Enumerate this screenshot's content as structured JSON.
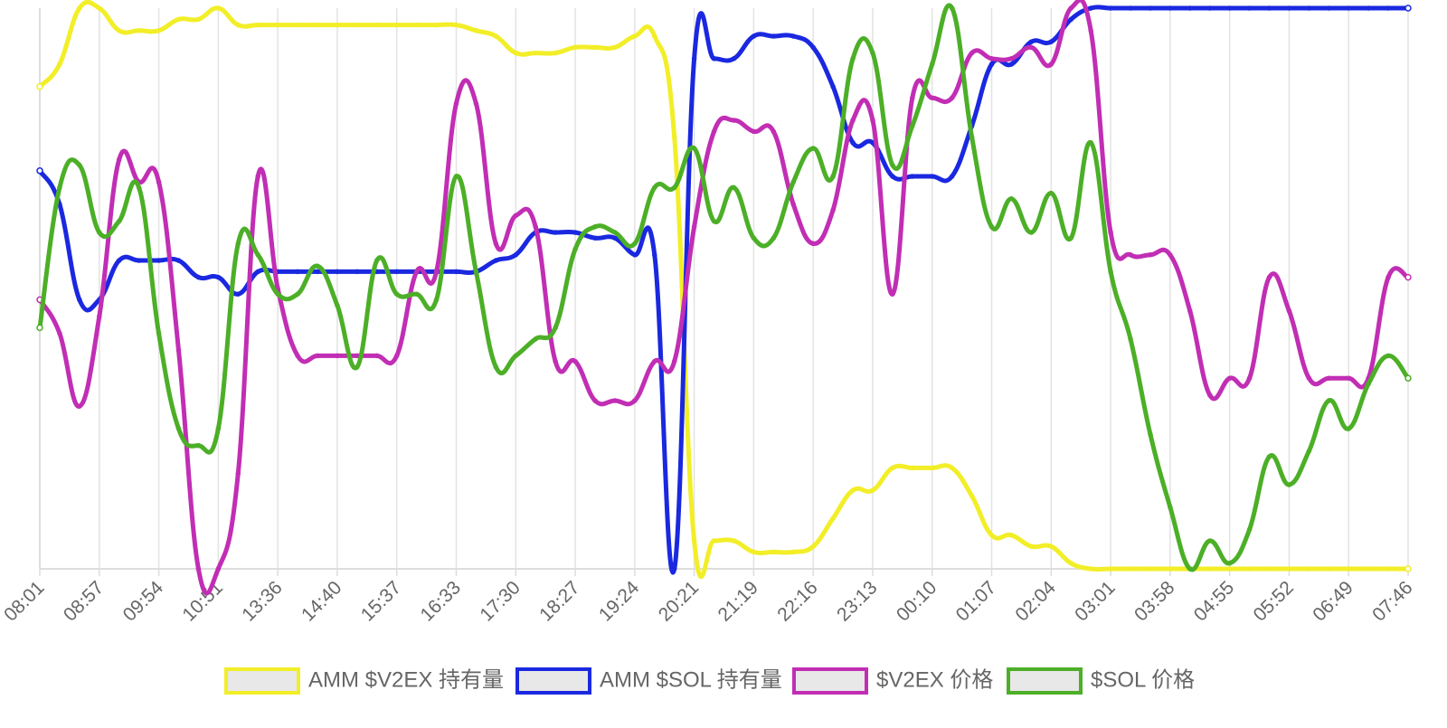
{
  "chart_data": {
    "type": "line",
    "categories": [
      "08:01",
      null,
      null,
      "08:57",
      null,
      null,
      "09:54",
      null,
      null,
      "10:51",
      null,
      null,
      "13:36",
      null,
      null,
      "14:40",
      null,
      null,
      "15:37",
      null,
      null,
      "16:33",
      null,
      null,
      "17:30",
      null,
      null,
      "18:27",
      null,
      null,
      "19:24",
      null,
      null,
      "20:21",
      null,
      null,
      "21:19",
      null,
      null,
      "22:16",
      null,
      null,
      "23:13",
      null,
      null,
      "00:10",
      null,
      null,
      "01:07",
      null,
      null,
      "02:04",
      null,
      null,
      "03:01",
      null,
      null,
      "03:58",
      null,
      null,
      "04:55",
      null,
      null,
      "05:52",
      null,
      null,
      "06:49",
      null,
      null,
      "07:46"
    ],
    "ylim": [
      0,
      100
    ],
    "grid": true,
    "legend": "bottom",
    "series": [
      {
        "name": "AMM $V2EX 持有量",
        "color": "#f2ee27",
        "values": [
          86,
          90,
          100,
          100,
          96,
          96,
          96,
          98,
          98,
          100,
          97,
          97,
          97,
          97,
          97,
          97,
          97,
          97,
          97,
          97,
          97,
          97,
          96,
          95,
          92,
          92,
          92,
          93,
          93,
          93,
          95,
          95,
          77,
          5,
          5,
          5,
          3,
          3,
          3,
          4,
          9,
          14,
          14,
          18,
          18,
          18,
          18,
          13,
          6,
          6,
          4,
          4,
          1,
          0,
          0,
          0,
          0,
          0,
          0,
          0,
          0,
          0,
          0,
          0,
          0,
          0,
          0,
          0,
          0,
          0
        ]
      },
      {
        "name": "AMM $SOL 持有量",
        "color": "#1a28e0",
        "values": [
          71,
          65,
          48,
          48,
          55,
          55,
          55,
          55,
          52,
          52,
          49,
          53,
          53,
          53,
          53,
          53,
          53,
          53,
          53,
          53,
          53,
          53,
          53,
          55,
          56,
          60,
          60,
          60,
          59,
          59,
          56,
          56,
          0,
          91,
          91,
          91,
          95,
          95,
          95,
          93,
          86,
          76,
          76,
          70,
          70,
          70,
          70,
          79,
          90,
          90,
          94,
          94,
          98,
          100,
          100,
          100,
          100,
          100,
          100,
          100,
          100,
          100,
          100,
          100,
          100,
          100,
          100,
          100,
          100,
          100
        ]
      },
      {
        "name": "$V2EX 价格",
        "color": "#c12eb4",
        "values": [
          48,
          42,
          29,
          45,
          73,
          69,
          69,
          39,
          0,
          0,
          17,
          70,
          50,
          38,
          38,
          38,
          38,
          38,
          38,
          53,
          53,
          83,
          83,
          58,
          63,
          61,
          37,
          37,
          30,
          30,
          30,
          37,
          37,
          61,
          78,
          80,
          78,
          78,
          65,
          58,
          64,
          80,
          80,
          49,
          84,
          84,
          84,
          92,
          91,
          91,
          93,
          90,
          100,
          96,
          60,
          56,
          56,
          56,
          46,
          31,
          34,
          34,
          52,
          46,
          34,
          34,
          34,
          34,
          52,
          52
        ]
      },
      {
        "name": "$SOL 价格",
        "color": "#4caf27",
        "values": [
          43,
          68,
          72,
          60,
          62,
          68,
          42,
          25,
          22,
          25,
          58,
          56,
          49,
          49,
          54,
          47,
          36,
          55,
          49,
          49,
          48,
          70,
          53,
          36,
          38,
          41,
          43,
          57,
          61,
          60,
          58,
          68,
          68,
          75,
          62,
          68,
          59,
          59,
          69,
          75,
          70,
          91,
          92,
          72,
          79,
          90,
          100,
          77,
          61,
          66,
          60,
          67,
          59,
          76,
          53,
          41,
          24,
          11,
          0,
          5,
          1,
          7,
          20,
          15,
          21,
          30,
          25,
          33,
          38,
          34
        ]
      }
    ]
  }
}
